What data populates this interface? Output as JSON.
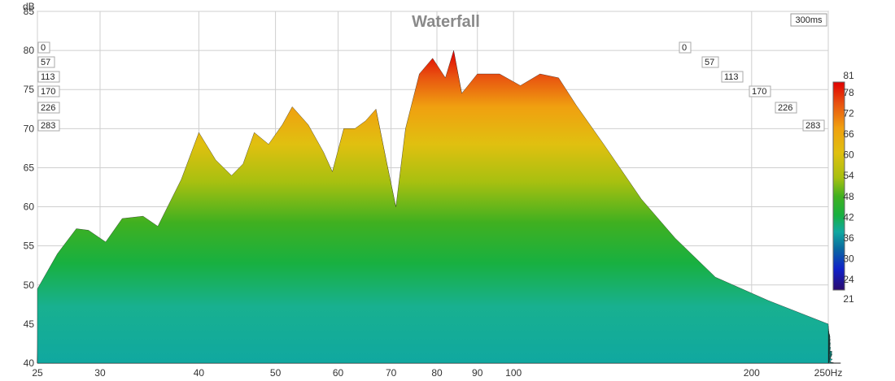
{
  "chart_data": {
    "type": "waterfall",
    "title": "Waterfall",
    "time_window": "300ms",
    "y_unit": "dB",
    "x_unit": "Hz",
    "xlim": [
      25,
      250
    ],
    "ylim": [
      40,
      85
    ],
    "x_scale": "log",
    "x_ticks": [
      25,
      30,
      40,
      50,
      60,
      70,
      80,
      90,
      100,
      200,
      250
    ],
    "x_tick_labels": [
      "25",
      "30",
      "40",
      "50",
      "60",
      "70",
      "80",
      "90",
      "100",
      "200",
      "250Hz"
    ],
    "y_ticks": [
      40,
      45,
      50,
      55,
      60,
      65,
      70,
      75,
      80,
      85
    ],
    "time_slices_ms": [
      "0",
      "57",
      "113",
      "170",
      "226",
      "283"
    ],
    "colorbar": {
      "min": 21,
      "max": 81,
      "tick_labels": [
        "81",
        "78",
        "72",
        "66",
        "60",
        "54",
        "48",
        "42",
        "36",
        "30",
        "24",
        "21"
      ],
      "colors": [
        "#2a0a6e",
        "#1020c8",
        "#0a6aa0",
        "#10a8a0",
        "#18b040",
        "#40b020",
        "#a8c010",
        "#e0c010",
        "#f0a010",
        "#e85010",
        "#e00000"
      ]
    },
    "series": [
      {
        "values_db": [
          [
            25,
            49.5
          ],
          [
            26.5,
            54
          ],
          [
            28,
            57.2
          ],
          [
            29,
            57
          ],
          [
            30.5,
            55.5
          ],
          [
            32,
            58.5
          ],
          [
            34,
            58.8
          ],
          [
            35.5,
            57.5
          ],
          [
            38,
            63.5
          ],
          [
            40,
            69.5
          ],
          [
            42,
            66
          ],
          [
            44,
            64
          ],
          [
            45.5,
            65.5
          ],
          [
            47,
            69.5
          ],
          [
            49,
            68
          ],
          [
            51,
            70.5
          ],
          [
            52.5,
            72.8
          ],
          [
            55,
            70.5
          ],
          [
            57.5,
            67
          ],
          [
            59,
            64.5
          ],
          [
            61,
            70
          ],
          [
            63,
            70
          ],
          [
            65,
            71
          ],
          [
            67,
            72.5
          ],
          [
            69,
            66
          ],
          [
            71,
            60
          ],
          [
            73,
            70
          ],
          [
            76,
            77
          ],
          [
            79,
            79
          ],
          [
            82,
            76.5
          ],
          [
            84,
            80
          ],
          [
            86,
            74.5
          ],
          [
            90,
            77
          ],
          [
            96,
            77
          ],
          [
            102,
            75.5
          ],
          [
            108,
            77
          ],
          [
            114,
            76.5
          ],
          [
            120,
            73
          ],
          [
            130,
            68
          ],
          [
            145,
            61
          ],
          [
            160,
            56
          ],
          [
            180,
            51
          ],
          [
            210,
            48
          ],
          [
            250,
            45
          ]
        ]
      }
    ]
  }
}
